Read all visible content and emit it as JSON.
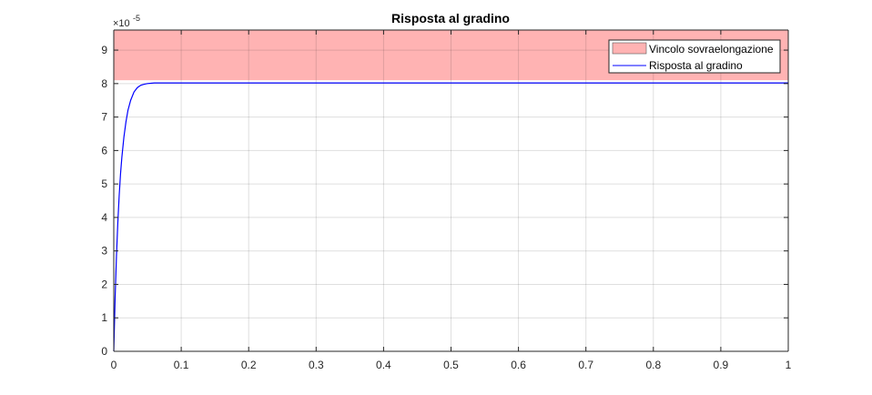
{
  "chart_data": {
    "type": "line",
    "title": "Risposta al gradino",
    "xlabel": "",
    "ylabel": "",
    "xlim": [
      0,
      1
    ],
    "ylim": [
      0,
      9.6
    ],
    "y_exponent_multiplier": "×10",
    "y_exponent": "-5",
    "x_ticks": [
      0,
      0.1,
      0.2,
      0.3,
      0.4,
      0.5,
      0.6,
      0.7,
      0.8,
      0.9,
      1
    ],
    "x_tick_labels": [
      "0",
      "0.1",
      "0.2",
      "0.3",
      "0.4",
      "0.5",
      "0.6",
      "0.7",
      "0.8",
      "0.9",
      "1"
    ],
    "y_ticks": [
      0,
      1,
      2,
      3,
      4,
      5,
      6,
      7,
      8,
      9
    ],
    "y_tick_labels": [
      "0",
      "1",
      "2",
      "3",
      "4",
      "5",
      "6",
      "7",
      "8",
      "9"
    ],
    "grid": true,
    "legend_position": "top-right",
    "regions": [
      {
        "name": "Vincolo sovraelongazione",
        "y_from": 8.1,
        "y_to": 9.6,
        "x_from": 0,
        "x_to": 1,
        "color": "#ffb3b3"
      }
    ],
    "series": [
      {
        "name": "Risposta al gradino",
        "color": "#0000ff",
        "x": [
          0,
          0.002,
          0.004,
          0.006,
          0.008,
          0.01,
          0.012,
          0.015,
          0.018,
          0.021,
          0.025,
          0.03,
          0.035,
          0.04,
          0.045,
          0.05,
          0.06,
          0.07,
          0.08,
          0.1,
          0.2,
          0.3,
          0.4,
          0.5,
          0.6,
          0.7,
          0.8,
          0.9,
          1.0
        ],
        "y": [
          0,
          1.6,
          2.85,
          3.85,
          4.65,
          5.3,
          5.8,
          6.4,
          6.85,
          7.2,
          7.5,
          7.75,
          7.88,
          7.95,
          7.98,
          8.0,
          8.02,
          8.02,
          8.02,
          8.02,
          8.02,
          8.02,
          8.02,
          8.02,
          8.02,
          8.02,
          8.02,
          8.02,
          8.02
        ]
      }
    ]
  }
}
